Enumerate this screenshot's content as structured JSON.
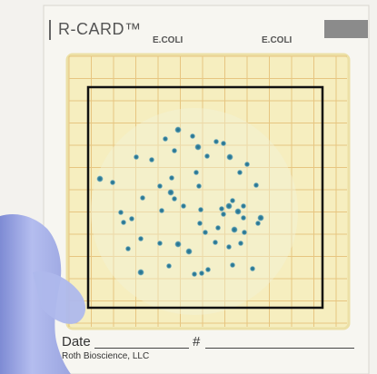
{
  "card": {
    "brand": "R-CARD™",
    "label_left": "E.COLI",
    "label_right": "E.COLI",
    "date_label": "Date",
    "number_label": "#",
    "company": "Roth Bioscience, LLC"
  },
  "colors": {
    "background": "#f3f2ee",
    "card": "#f7f6f1",
    "plate": "#f7edbb",
    "grid_lines": "#e3b86b",
    "colony": "#2f7a95",
    "outline_box": "#111111",
    "glove": "#a9b4ea"
  },
  "colonies": {
    "count": 58
  }
}
